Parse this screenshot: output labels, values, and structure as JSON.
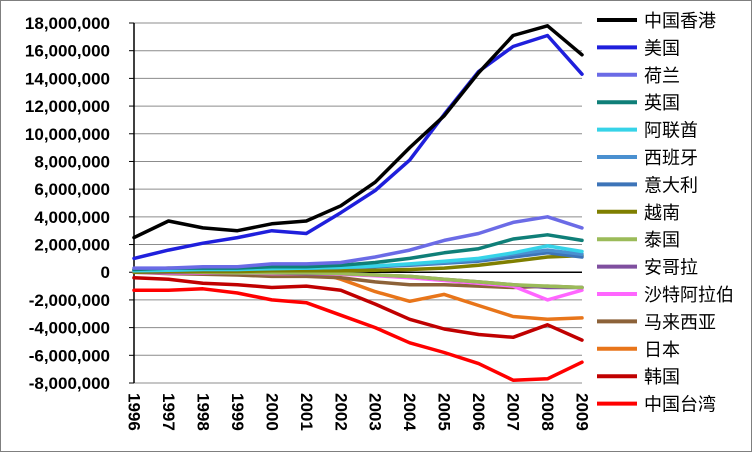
{
  "chart_data": {
    "type": "line",
    "title": "",
    "xlabel": "",
    "ylabel": "",
    "ylim": [
      -8000000,
      18000000
    ],
    "y_ticks": [
      18000000,
      16000000,
      14000000,
      12000000,
      10000000,
      8000000,
      6000000,
      4000000,
      2000000,
      0,
      -2000000,
      -4000000,
      -6000000,
      -8000000
    ],
    "y_tick_labels": [
      "18,000,000",
      "16,000,000",
      "14,000,000",
      "12,000,000",
      "10,000,000",
      "8,000,000",
      "6,000,000",
      "4,000,000",
      "2,000,000",
      "0",
      "-2,000,000",
      "-4,000,000",
      "-6,000,000",
      "-8,000,000"
    ],
    "x": [
      "1996",
      "1997",
      "1998",
      "1999",
      "2000",
      "2001",
      "2002",
      "2003",
      "2004",
      "2005",
      "2006",
      "2007",
      "2008",
      "2009"
    ],
    "grid": "horizontal",
    "legend_position": "right",
    "series": [
      {
        "name": "中国香港",
        "color": "#000000",
        "values": [
          2500000,
          3700000,
          3200000,
          3000000,
          3500000,
          3700000,
          4800000,
          6500000,
          9000000,
          11300000,
          14400000,
          17100000,
          17800000,
          15700000
        ]
      },
      {
        "name": "美国",
        "color": "#1f1fdc",
        "values": [
          1000000,
          1600000,
          2100000,
          2500000,
          3000000,
          2800000,
          4300000,
          5900000,
          8100000,
          11400000,
          14500000,
          16300000,
          17100000,
          14300000
        ]
      },
      {
        "name": "荷兰",
        "color": "#6b6be6",
        "values": [
          300000,
          300000,
          400000,
          400000,
          600000,
          600000,
          700000,
          1100000,
          1600000,
          2300000,
          2800000,
          3600000,
          4000000,
          3200000
        ]
      },
      {
        "name": "英国",
        "color": "#0f7f78",
        "values": [
          200000,
          300000,
          300000,
          300000,
          400000,
          400000,
          500000,
          700000,
          1000000,
          1400000,
          1700000,
          2400000,
          2700000,
          2300000
        ]
      },
      {
        "name": "阿联酋",
        "color": "#36d3e8",
        "values": [
          100000,
          150000,
          200000,
          200000,
          250000,
          300000,
          350000,
          450000,
          600000,
          800000,
          1000000,
          1400000,
          1900000,
          1500000
        ]
      },
      {
        "name": "西班牙",
        "color": "#4a90d0",
        "values": [
          150000,
          200000,
          250000,
          250000,
          300000,
          300000,
          350000,
          450000,
          550000,
          700000,
          900000,
          1300000,
          1600000,
          1300000
        ]
      },
      {
        "name": "意大利",
        "color": "#3d74b8",
        "values": [
          100000,
          150000,
          200000,
          200000,
          300000,
          300000,
          350000,
          400000,
          500000,
          650000,
          800000,
          1100000,
          1400000,
          1100000
        ]
      },
      {
        "name": "越南",
        "color": "#7f7f00",
        "values": [
          0,
          50000,
          50000,
          50000,
          100000,
          100000,
          100000,
          150000,
          200000,
          300000,
          500000,
          800000,
          1100000,
          1200000
        ]
      },
      {
        "name": "泰国",
        "color": "#9bbb59",
        "values": [
          100000,
          50000,
          0,
          -50000,
          -50000,
          -50000,
          -100000,
          -200000,
          -300000,
          -500000,
          -700000,
          -900000,
          -1000000,
          -1100000
        ]
      },
      {
        "name": "安哥拉",
        "color": "#7f4f9f",
        "values": [
          0,
          0,
          0,
          -50000,
          -50000,
          -100000,
          -100000,
          -200000,
          -300000,
          -500000,
          -700000,
          -900000,
          -1100000,
          -1100000
        ]
      },
      {
        "name": "沙特阿拉伯",
        "color": "#ff66ff",
        "values": [
          0,
          -50000,
          -50000,
          -50000,
          -100000,
          -100000,
          -150000,
          -250000,
          -400000,
          -600000,
          -800000,
          -1000000,
          -2000000,
          -1300000
        ]
      },
      {
        "name": "马来西亚",
        "color": "#8c6239",
        "values": [
          0,
          -100000,
          -150000,
          -200000,
          -300000,
          -300000,
          -400000,
          -700000,
          -900000,
          -900000,
          -1000000,
          -1100000,
          -1000000,
          -1100000
        ]
      },
      {
        "name": "日本",
        "color": "#e8751a",
        "values": [
          200000,
          300000,
          200000,
          100000,
          100000,
          200000,
          -500000,
          -1400000,
          -2100000,
          -1600000,
          -2400000,
          -3200000,
          -3400000,
          -3300000
        ]
      },
      {
        "name": "韩国",
        "color": "#c00000",
        "values": [
          -400000,
          -500000,
          -800000,
          -900000,
          -1100000,
          -1000000,
          -1300000,
          -2300000,
          -3400000,
          -4100000,
          -4500000,
          -4700000,
          -3800000,
          -4900000
        ]
      },
      {
        "name": "中国台湾",
        "color": "#ff0000",
        "values": [
          -1300000,
          -1300000,
          -1200000,
          -1500000,
          -2000000,
          -2200000,
          -3100000,
          -4000000,
          -5100000,
          -5800000,
          -6600000,
          -7800000,
          -7700000,
          -6500000
        ]
      }
    ]
  }
}
